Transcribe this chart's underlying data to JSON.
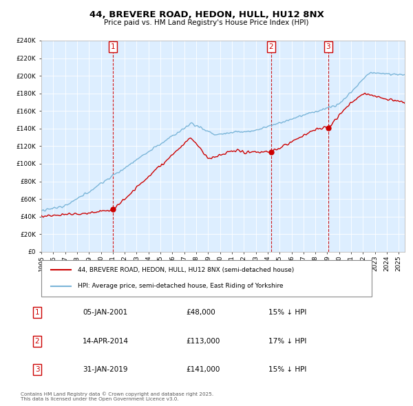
{
  "title": "44, BREVERE ROAD, HEDON, HULL, HU12 8NX",
  "subtitle": "Price paid vs. HM Land Registry's House Price Index (HPI)",
  "legend_label_red": "44, BREVERE ROAD, HEDON, HULL, HU12 8NX (semi-detached house)",
  "legend_label_blue": "HPI: Average price, semi-detached house, East Riding of Yorkshire",
  "footer": "Contains HM Land Registry data © Crown copyright and database right 2025.\nThis data is licensed under the Open Government Licence v3.0.",
  "sales": [
    {
      "num": 1,
      "date": "05-JAN-2001",
      "price": 48000,
      "pct": "15% ↓ HPI",
      "year": 2001.02
    },
    {
      "num": 2,
      "date": "14-APR-2014",
      "price": 113000,
      "pct": "17% ↓ HPI",
      "year": 2014.28
    },
    {
      "num": 3,
      "date": "31-JAN-2019",
      "price": 141000,
      "pct": "15% ↓ HPI",
      "year": 2019.08
    }
  ],
  "hpi_color": "#7ab5d8",
  "price_color": "#cc0000",
  "ylim": [
    0,
    240000
  ],
  "ytick_step": 20000,
  "xlim_start": 1995,
  "xlim_end": 2025.5,
  "background_color": "#ddeeff",
  "grid_color": "#ffffff"
}
